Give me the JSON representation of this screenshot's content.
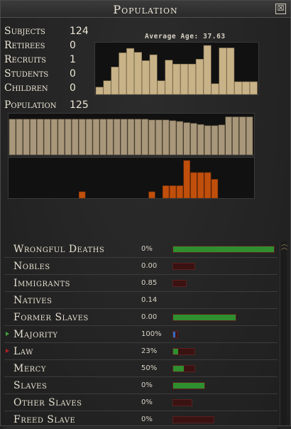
{
  "window": {
    "title": "Population",
    "close_glyph": "☒"
  },
  "stats": [
    {
      "label": "Subjects",
      "value": "124"
    },
    {
      "label": "Retirees",
      "value": "0"
    },
    {
      "label": "Recruits",
      "value": "1"
    },
    {
      "label": "Students",
      "value": "0"
    },
    {
      "label": "Children",
      "value": "0"
    }
  ],
  "population": {
    "label": "Population",
    "value": "125"
  },
  "age_chart": {
    "label": "Average Age: 37.63",
    "bar_color": "#c8b287",
    "values": [
      0.15,
      0.28,
      0.56,
      0.85,
      0.94,
      0.86,
      0.69,
      0.81,
      0.28,
      0.7,
      0.62,
      0.62,
      0.62,
      0.72,
      1.0,
      0.22,
      0.95,
      0.95,
      0.26,
      0.26,
      0.26
    ]
  },
  "population_chart": {
    "bar_color": "#a8977a",
    "highlight_color": "#c8b287",
    "values": [
      0.93,
      0.93,
      0.93,
      0.93,
      0.93,
      0.93,
      0.93,
      0.93,
      0.93,
      0.93,
      0.93,
      0.93,
      0.93,
      0.93,
      0.93,
      0.93,
      0.93,
      0.93,
      0.93,
      0.93,
      0.91,
      0.91,
      0.91,
      0.89,
      0.87,
      0.84,
      0.82,
      0.79,
      0.76,
      0.76,
      0.78,
      0.99,
      0.99,
      0.99,
      0.99
    ]
  },
  "change_chart": {
    "bar_color": "#c04f0c",
    "values": [
      0,
      0,
      0,
      0,
      0,
      0,
      0,
      0,
      0,
      0,
      0.17,
      0,
      0,
      0,
      0,
      0,
      0,
      0,
      0,
      0,
      0.17,
      0,
      0.33,
      0.33,
      0.33,
      1.0,
      0.68,
      0.68,
      0.68,
      0.5,
      0,
      0,
      0,
      0,
      0
    ]
  },
  "rows": [
    {
      "label": "Wrongful Deaths",
      "value": "0%",
      "fill": 1.0,
      "track": 1.0,
      "color": "green",
      "indicator": ""
    },
    {
      "label": "Nobles",
      "value": "0.00",
      "fill": 0.0,
      "track": 0.21,
      "color": "green",
      "indicator": ""
    },
    {
      "label": "Immigrants",
      "value": "0.85",
      "fill": 0.0,
      "track": 0.13,
      "color": "green",
      "indicator": ""
    },
    {
      "label": "Natives",
      "value": "0.14",
      "fill": 0.0,
      "track": 0.0,
      "color": "green",
      "indicator": ""
    },
    {
      "label": "Former Slaves",
      "value": "0.00",
      "fill": 1.0,
      "track": 0.62,
      "color": "green",
      "indicator": ""
    },
    {
      "label": "Majority",
      "value": "100%",
      "fill": 0.55,
      "track": 0.04,
      "color": "blue",
      "indicator": "up"
    },
    {
      "label": "Law",
      "value": "23%",
      "fill": 0.23,
      "track": 0.21,
      "color": "green",
      "indicator": "down"
    },
    {
      "label": "Mercy",
      "value": "50%",
      "fill": 0.5,
      "track": 0.21,
      "color": "green",
      "indicator": ""
    },
    {
      "label": "Slaves",
      "value": "0%",
      "fill": 1.0,
      "track": 0.31,
      "color": "green",
      "indicator": ""
    },
    {
      "label": "Other Slaves",
      "value": "0%",
      "fill": 0.0,
      "track": 0.18,
      "color": "green",
      "indicator": ""
    },
    {
      "label": "Freed Slave",
      "value": "0%",
      "fill": 0.0,
      "track": 0.4,
      "color": "green",
      "indicator": ""
    }
  ]
}
